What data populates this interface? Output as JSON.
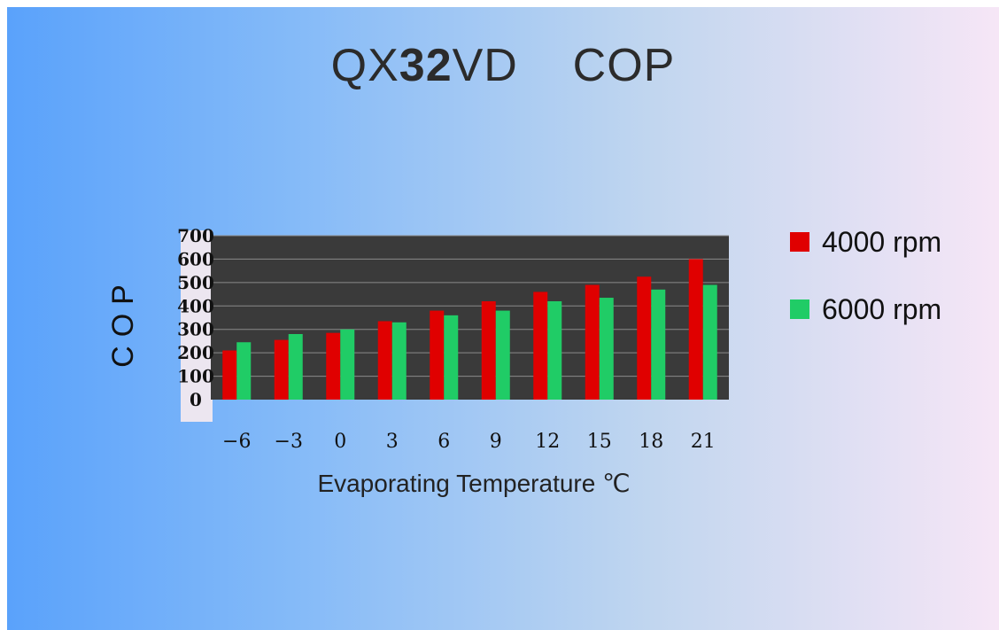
{
  "chart_data": {
    "type": "bar",
    "title_prefix": "QX",
    "title_bold": "32",
    "title_suffix": "VD    COP",
    "xlabel": "Evaporating Temperature ℃",
    "ylabel": "COP",
    "categories": [
      "−6",
      "−3",
      "0",
      "3",
      "6",
      "9",
      "12",
      "15",
      "18",
      "21"
    ],
    "ylim": [
      0,
      700
    ],
    "yticks": [
      "0",
      "100",
      "200",
      "300",
      "400",
      "500",
      "600",
      "700"
    ],
    "grid": true,
    "legend_position": "right",
    "series": [
      {
        "name": "4000 rpm",
        "color": "#e00000",
        "values": [
          210,
          255,
          285,
          335,
          380,
          420,
          460,
          490,
          525,
          600
        ]
      },
      {
        "name": "6000 rpm",
        "color": "#20cc66",
        "values": [
          245,
          280,
          300,
          330,
          360,
          380,
          420,
          435,
          470,
          490
        ]
      }
    ]
  },
  "colors": {
    "plot_background": "#3a3a3a",
    "gridline": "#8a8a8a"
  }
}
